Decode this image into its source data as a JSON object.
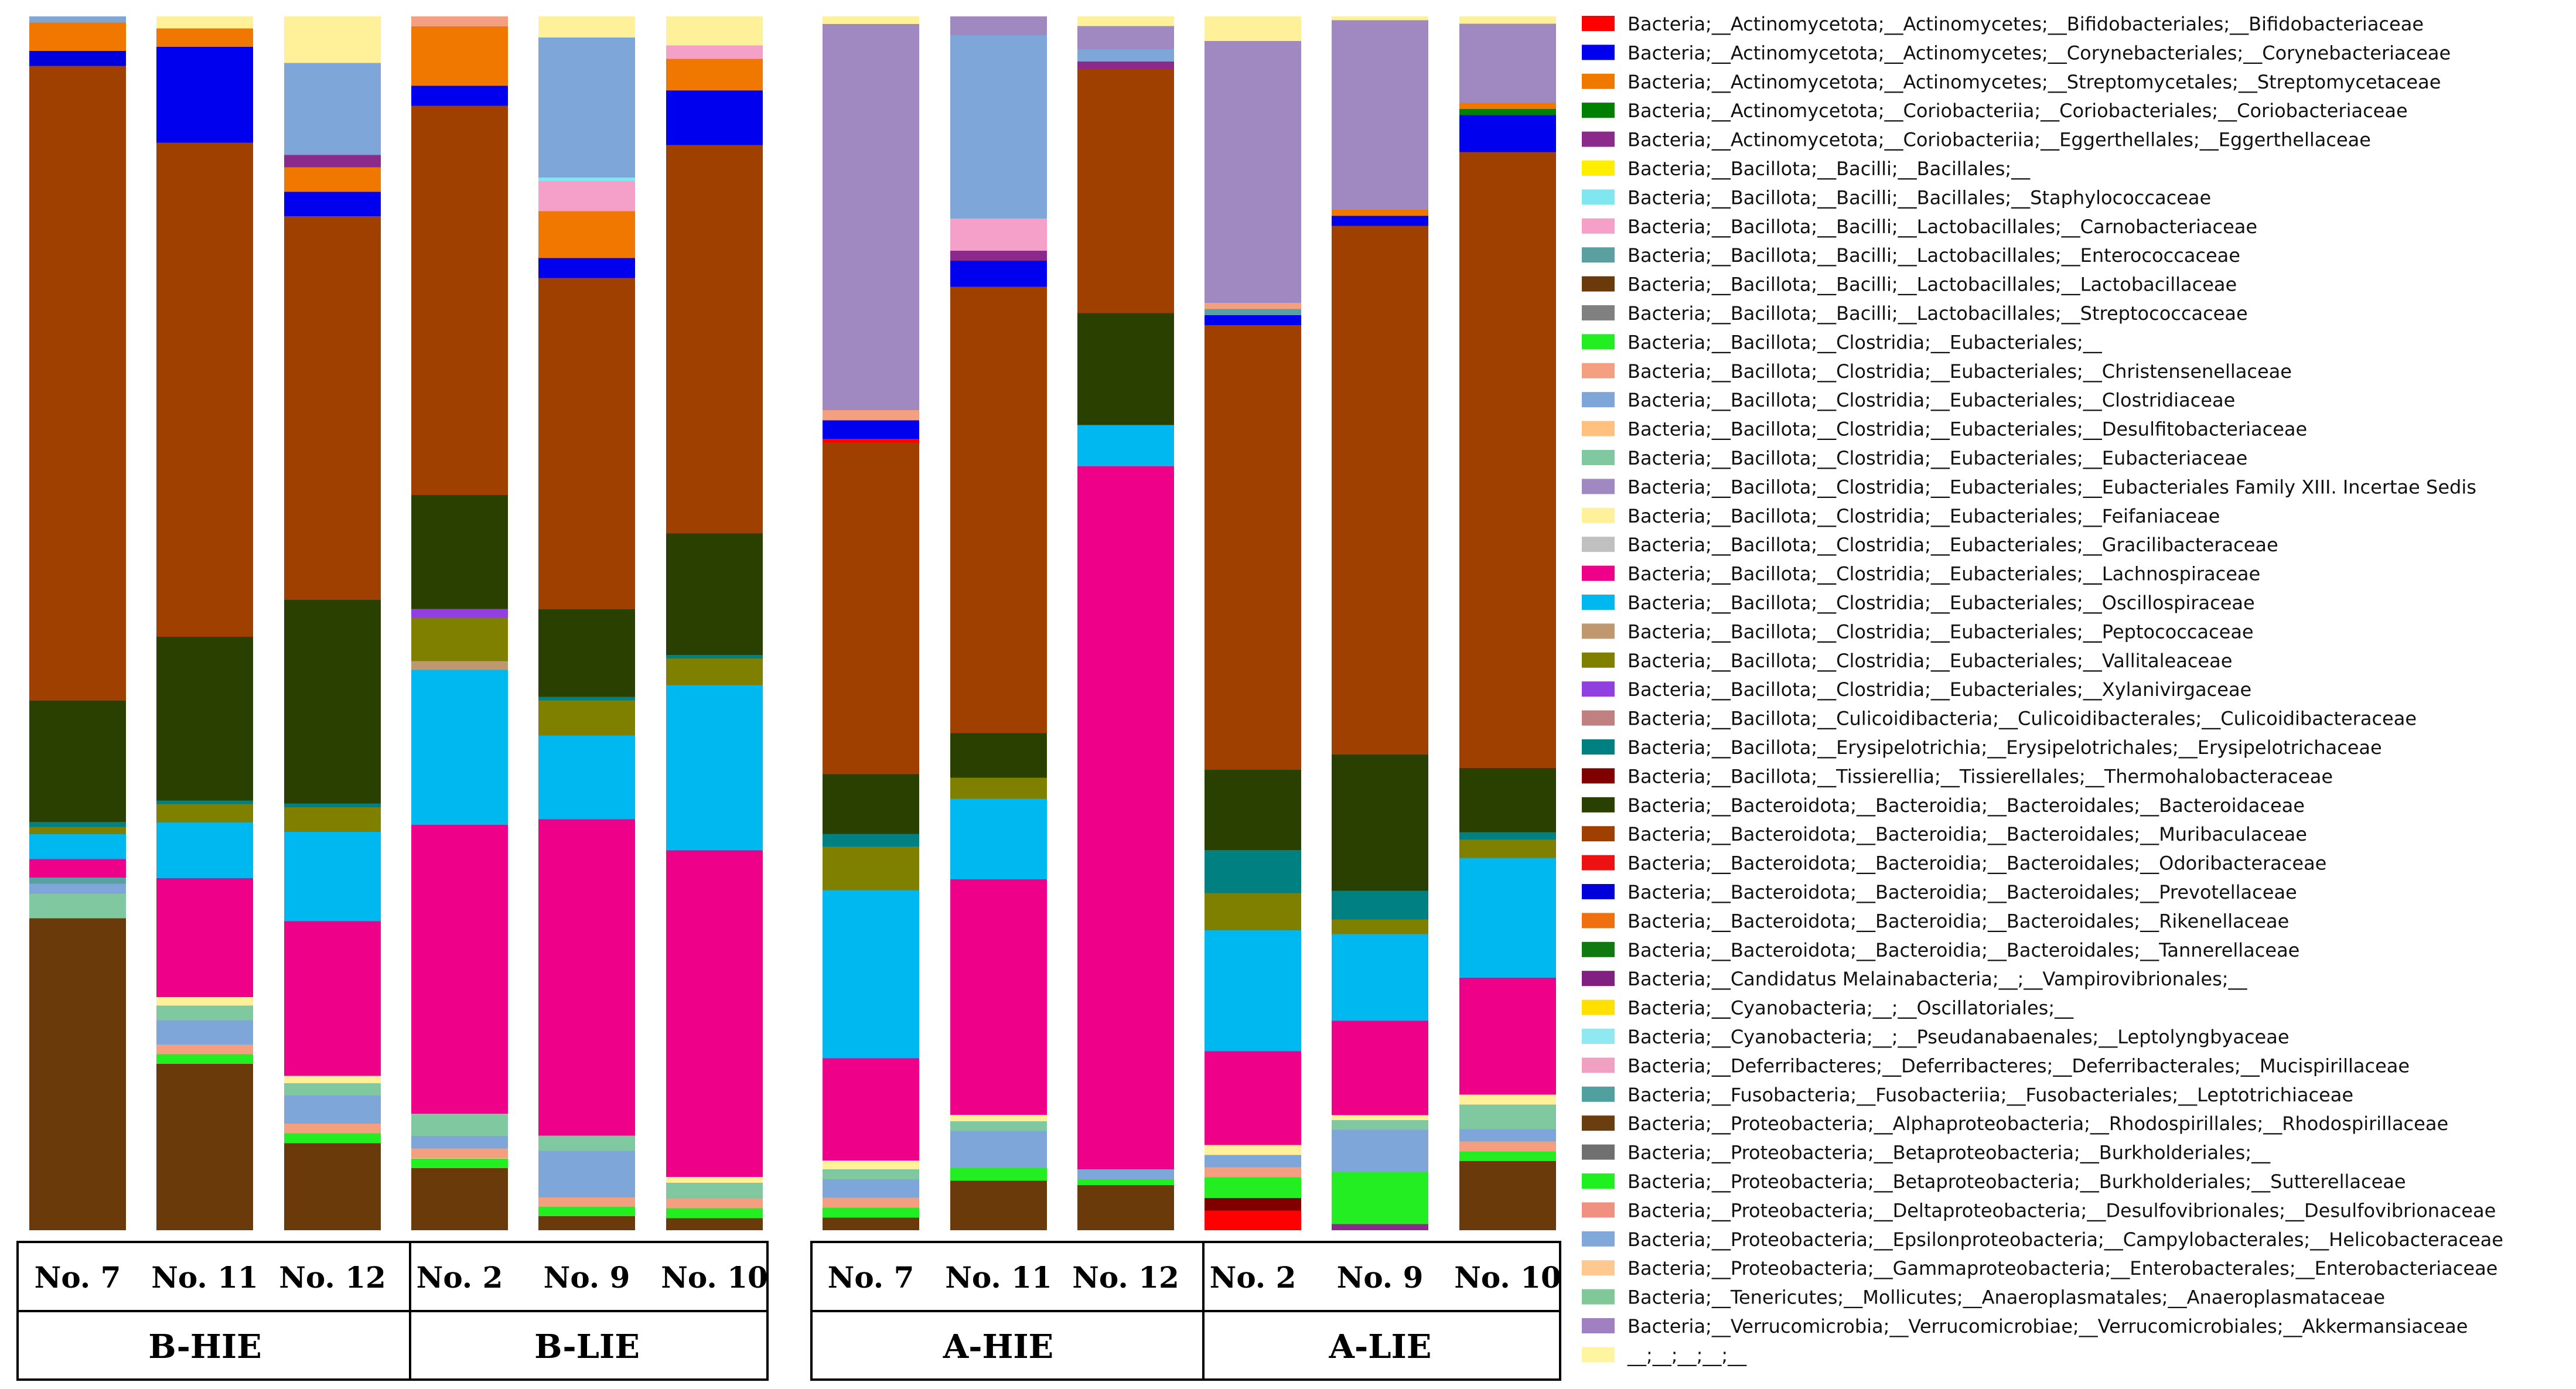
{
  "chart_data": {
    "type": "bar",
    "stacked": true,
    "normalized": true,
    "ylim": [
      0,
      100
    ],
    "legend_position": "right",
    "taxa": [
      {
        "name": "Bacteria;__Actinomycetota;__Actinomycetes;__Bifidobacteriales;__Bifidobacteriaceae",
        "color": "#ff0000"
      },
      {
        "name": "Bacteria;__Actinomycetota;__Actinomycetes;__Corynebacteriales;__Corynebacteriaceae",
        "color": "#0000ee"
      },
      {
        "name": "Bacteria;__Actinomycetota;__Actinomycetes;__Streptomycetales;__Streptomycetaceae",
        "color": "#f07800"
      },
      {
        "name": "Bacteria;__Actinomycetota;__Coriobacteriia;__Coriobacteriales;__Coriobacteriaceae",
        "color": "#008000"
      },
      {
        "name": "Bacteria;__Actinomycetota;__Coriobacteriia;__Eggerthellales;__Eggerthellaceae",
        "color": "#8b2a8b"
      },
      {
        "name": "Bacteria;__Bacillota;__Bacilli;__Bacillales;__",
        "color": "#ffee00"
      },
      {
        "name": "Bacteria;__Bacillota;__Bacilli;__Bacillales;__Staphylococcaceae",
        "color": "#80e6f0"
      },
      {
        "name": "Bacteria;__Bacillota;__Bacilli;__Lactobacillales;__Carnobacteriaceae",
        "color": "#f4a0c8"
      },
      {
        "name": "Bacteria;__Bacillota;__Bacilli;__Lactobacillales;__Enterococcaceae",
        "color": "#5aa0a0"
      },
      {
        "name": "Bacteria;__Bacillota;__Bacilli;__Lactobacillales;__Lactobacillaceae",
        "color": "#6b3a0a"
      },
      {
        "name": "Bacteria;__Bacillota;__Bacilli;__Lactobacillales;__Streptococcaceae",
        "color": "#808080"
      },
      {
        "name": "Bacteria;__Bacillota;__Clostridia;__Eubacteriales;__",
        "color": "#22ee22"
      },
      {
        "name": "Bacteria;__Bacillota;__Clostridia;__Eubacteriales;__Christensenellaceae",
        "color": "#f4a080"
      },
      {
        "name": "Bacteria;__Bacillota;__Clostridia;__Eubacteriales;__Clostridiaceae",
        "color": "#7ea6d8"
      },
      {
        "name": "Bacteria;__Bacillota;__Clostridia;__Eubacteriales;__Desulfitobacteriaceae",
        "color": "#ffc080"
      },
      {
        "name": "Bacteria;__Bacillota;__Clostridia;__Eubacteriales;__Eubacteriaceae",
        "color": "#80c8a0"
      },
      {
        "name": "Bacteria;__Bacillota;__Clostridia;__Eubacteriales;__Eubacteriales Family XIII. Incertae Sedis",
        "color": "#a088c0"
      },
      {
        "name": "Bacteria;__Bacillota;__Clostridia;__Eubacteriales;__Feifaniaceae",
        "color": "#fff09a"
      },
      {
        "name": "Bacteria;__Bacillota;__Clostridia;__Eubacteriales;__Gracilibacteraceae",
        "color": "#c0c0c0"
      },
      {
        "name": "Bacteria;__Bacillota;__Clostridia;__Eubacteriales;__Lachnospiraceae",
        "color": "#ee0088"
      },
      {
        "name": "Bacteria;__Bacillota;__Clostridia;__Eubacteriales;__Oscillospiraceae",
        "color": "#00b8f0"
      },
      {
        "name": "Bacteria;__Bacillota;__Clostridia;__Eubacteriales;__Peptococcaceae",
        "color": "#c09870"
      },
      {
        "name": "Bacteria;__Bacillota;__Clostridia;__Eubacteriales;__Vallitaleaceae",
        "color": "#808000"
      },
      {
        "name": "Bacteria;__Bacillota;__Clostridia;__Eubacteriales;__Xylanivirgaceae",
        "color": "#9040e0"
      },
      {
        "name": "Bacteria;__Bacillota;__Culicoidibacteria;__Culicoidibacterales;__Culicoidibacteraceae",
        "color": "#c08080"
      },
      {
        "name": "Bacteria;__Bacillota;__Erysipelotrichia;__Erysipelotrichales;__Erysipelotrichaceae",
        "color": "#008080"
      },
      {
        "name": "Bacteria;__Bacillota;__Tissierellia;__Tissierellales;__Thermohalobacteraceae",
        "color": "#800000"
      },
      {
        "name": "Bacteria;__Bacteroidota;__Bacteroidia;__Bacteroidales;__Bacteroidaceae",
        "color": "#2a4000"
      },
      {
        "name": "Bacteria;__Bacteroidota;__Bacteroidia;__Bacteroidales;__Muribaculaceae",
        "color": "#a04000"
      },
      {
        "name": "Bacteria;__Bacteroidota;__Bacteroidia;__Bacteroidales;__Odoribacteraceae",
        "color": "#ee1111"
      },
      {
        "name": "Bacteria;__Bacteroidota;__Bacteroidia;__Bacteroidales;__Prevotellaceae",
        "color": "#0000dd"
      },
      {
        "name": "Bacteria;__Bacteroidota;__Bacteroidia;__Bacteroidales;__Rikenellaceae",
        "color": "#f07010"
      },
      {
        "name": "Bacteria;__Bacteroidota;__Bacteroidia;__Bacteroidales;__Tannerellaceae",
        "color": "#107a10"
      },
      {
        "name": "Bacteria;__Candidatus Melainabacteria;__;__Vampirovibrionales;__",
        "color": "#802080"
      },
      {
        "name": "Bacteria;__Cyanobacteria;__;__Oscillatoriales;__",
        "color": "#ffe000"
      },
      {
        "name": "Bacteria;__Cyanobacteria;__;__Pseudanabaenales;__Leptolyngbyaceae",
        "color": "#90e8f0"
      },
      {
        "name": "Bacteria;__Deferribacteres;__Deferribacteres;__Deferribacterales;__Mucispirillaceae",
        "color": "#f0a0c0"
      },
      {
        "name": "Bacteria;__Fusobacteria;__Fusobacteriia;__Fusobacteriales;__Leptotrichiaceae",
        "color": "#50a0a0"
      },
      {
        "name": "Bacteria;__Proteobacteria;__Alphaproteobacteria;__Rhodospirillales;__Rhodospirillaceae",
        "color": "#6a3e0e"
      },
      {
        "name": "Bacteria;__Proteobacteria;__Betaproteobacteria;__Burkholderiales;__",
        "color": "#707070"
      },
      {
        "name": "Bacteria;__Proteobacteria;__Betaproteobacteria;__Burkholderiales;__Sutterellaceae",
        "color": "#20f020"
      },
      {
        "name": "Bacteria;__Proteobacteria;__Deltaproteobacteria;__Desulfovibrionales;__Desulfovibrionaceae",
        "color": "#f09080"
      },
      {
        "name": "Bacteria;__Proteobacteria;__Epsilonproteobacteria;__Campylobacterales;__Helicobacteraceae",
        "color": "#80a8d8"
      },
      {
        "name": "Bacteria;__Proteobacteria;__Gammaproteobacteria;__Enterobacterales;__Enterobacteriaceae",
        "color": "#ffc890"
      },
      {
        "name": "Bacteria;__Tenericutes;__Mollicutes;__Anaeroplasmatales;__Anaeroplasmataceae",
        "color": "#80c898"
      },
      {
        "name": "Bacteria;__Verrucomicrobia;__Verrucomicrobiae;__Verrucomicrobiales;__Akkermansiaceae",
        "color": "#a080c0"
      },
      {
        "name": "__;__;__;__;__",
        "color": "#fff5a0"
      }
    ],
    "groups": [
      {
        "name": "B-HIE",
        "samples": [
          "No. 7",
          "No. 11",
          "No. 12"
        ]
      },
      {
        "name": "B-LIE",
        "samples": [
          "No. 2",
          "No. 9",
          "No. 10"
        ]
      },
      {
        "name": "A-HIE",
        "samples": [
          "No. 7",
          "No. 11",
          "No. 12"
        ]
      },
      {
        "name": "A-LIE",
        "samples": [
          "No. 2",
          "No. 9",
          "No. 10"
        ]
      }
    ],
    "series_order": "bottom_to_top",
    "bars": [
      {
        "group": "B-HIE",
        "sample": "No. 7",
        "segments": [
          [
            9,
            25.2
          ],
          [
            15,
            2.0
          ],
          [
            13,
            0.8
          ],
          [
            8,
            0.5
          ],
          [
            19,
            1.5
          ],
          [
            20,
            2.0
          ],
          [
            22,
            0.6
          ],
          [
            25,
            0.4
          ],
          [
            27,
            9.8
          ],
          [
            28,
            51.3
          ],
          [
            30,
            1.2
          ],
          [
            2,
            2.3
          ],
          [
            13,
            0.5
          ]
        ]
      },
      {
        "group": "B-HIE",
        "sample": "No. 11",
        "segments": [
          [
            9,
            13.7
          ],
          [
            11,
            0.8
          ],
          [
            12,
            0.8
          ],
          [
            13,
            2.0
          ],
          [
            15,
            1.2
          ],
          [
            17,
            0.7
          ],
          [
            19,
            9.8
          ],
          [
            20,
            4.6
          ],
          [
            22,
            1.5
          ],
          [
            25,
            0.3
          ],
          [
            27,
            13.5
          ],
          [
            28,
            40.7
          ],
          [
            1,
            7.9
          ],
          [
            2,
            1.5
          ],
          [
            17,
            1.0
          ]
        ]
      },
      {
        "group": "B-HIE",
        "sample": "No. 12",
        "segments": [
          [
            9,
            7.1
          ],
          [
            11,
            0.8
          ],
          [
            12,
            0.8
          ],
          [
            13,
            2.3
          ],
          [
            15,
            1.0
          ],
          [
            17,
            0.6
          ],
          [
            19,
            12.6
          ],
          [
            20,
            7.3
          ],
          [
            22,
            2.0
          ],
          [
            25,
            0.3
          ],
          [
            27,
            16.6
          ],
          [
            28,
            31.3
          ],
          [
            1,
            2.0
          ],
          [
            2,
            2.0
          ],
          [
            4,
            1.0
          ],
          [
            13,
            7.5
          ],
          [
            17,
            3.8
          ]
        ]
      },
      {
        "group": "B-LIE",
        "sample": "No. 2",
        "segments": [
          [
            9,
            5.0
          ],
          [
            11,
            0.8
          ],
          [
            12,
            0.8
          ],
          [
            13,
            1.0
          ],
          [
            15,
            1.8
          ],
          [
            19,
            23.3
          ],
          [
            20,
            12.5
          ],
          [
            21,
            0.7
          ],
          [
            22,
            3.5
          ],
          [
            23,
            0.7
          ],
          [
            27,
            9.2
          ],
          [
            28,
            31.4
          ],
          [
            1,
            1.6
          ],
          [
            2,
            4.8
          ],
          [
            12,
            0.8
          ]
        ]
      },
      {
        "group": "B-LIE",
        "sample": "No. 9",
        "segments": [
          [
            9,
            1.2
          ],
          [
            11,
            0.8
          ],
          [
            12,
            0.8
          ],
          [
            13,
            4.0
          ],
          [
            15,
            1.3
          ],
          [
            19,
            27.1
          ],
          [
            20,
            7.2
          ],
          [
            22,
            3.0
          ],
          [
            25,
            0.3
          ],
          [
            27,
            7.5
          ],
          [
            28,
            28.4
          ],
          [
            1,
            1.7
          ],
          [
            2,
            4.0
          ],
          [
            7,
            2.6
          ],
          [
            6,
            0.3
          ],
          [
            13,
            12.0
          ],
          [
            17,
            1.8
          ]
        ]
      },
      {
        "group": "B-LIE",
        "sample": "No. 10",
        "segments": [
          [
            9,
            1.0
          ],
          [
            11,
            0.8
          ],
          [
            12,
            0.8
          ],
          [
            15,
            1.3
          ],
          [
            17,
            0.5
          ],
          [
            19,
            26.9
          ],
          [
            20,
            13.6
          ],
          [
            22,
            2.2
          ],
          [
            25,
            0.3
          ],
          [
            27,
            10.0
          ],
          [
            28,
            32.0
          ],
          [
            1,
            4.5
          ],
          [
            2,
            2.6
          ],
          [
            7,
            1.1
          ],
          [
            17,
            2.4
          ]
        ]
      },
      {
        "group": "A-HIE",
        "sample": "No. 7",
        "segments": [
          [
            9,
            1.0
          ],
          [
            11,
            0.8
          ],
          [
            12,
            0.8
          ],
          [
            13,
            1.5
          ],
          [
            15,
            0.8
          ],
          [
            17,
            0.7
          ],
          [
            19,
            8.2
          ],
          [
            20,
            13.5
          ],
          [
            22,
            3.5
          ],
          [
            25,
            1.0
          ],
          [
            27,
            4.8
          ],
          [
            28,
            26.6
          ],
          [
            0,
            0.3
          ],
          [
            1,
            1.5
          ],
          [
            12,
            0.8
          ],
          [
            16,
            31.0
          ],
          [
            17,
            0.6
          ]
        ]
      },
      {
        "group": "A-HIE",
        "sample": "No. 11",
        "segments": [
          [
            9,
            4.0
          ],
          [
            11,
            1.0
          ],
          [
            13,
            3.0
          ],
          [
            15,
            0.8
          ],
          [
            17,
            0.5
          ],
          [
            19,
            19.0
          ],
          [
            20,
            6.5
          ],
          [
            22,
            1.7
          ],
          [
            27,
            3.6
          ],
          [
            28,
            36.0
          ],
          [
            1,
            2.1
          ],
          [
            4,
            0.8
          ],
          [
            7,
            2.6
          ],
          [
            13,
            14.8
          ],
          [
            16,
            1.5
          ]
        ]
      },
      {
        "group": "A-HIE",
        "sample": "No. 12",
        "segments": [
          [
            9,
            3.7
          ],
          [
            11,
            0.5
          ],
          [
            13,
            0.8
          ],
          [
            19,
            57.8
          ],
          [
            20,
            3.4
          ],
          [
            27,
            9.2
          ],
          [
            28,
            20.1
          ],
          [
            4,
            0.6
          ],
          [
            13,
            1.0
          ],
          [
            16,
            1.9
          ],
          [
            17,
            0.8
          ]
        ]
      },
      {
        "group": "A-LIE",
        "sample": "No. 2",
        "segments": [
          [
            0,
            1.6
          ],
          [
            26,
            1.0
          ],
          [
            11,
            1.7
          ],
          [
            12,
            0.8
          ],
          [
            13,
            1.0
          ],
          [
            17,
            0.8
          ],
          [
            19,
            7.6
          ],
          [
            20,
            9.8
          ],
          [
            22,
            3.0
          ],
          [
            25,
            3.5
          ],
          [
            27,
            6.5
          ],
          [
            28,
            36.0
          ],
          [
            1,
            0.8
          ],
          [
            8,
            0.5
          ],
          [
            12,
            0.5
          ],
          [
            16,
            21.2
          ],
          [
            17,
            2.0
          ]
        ]
      },
      {
        "group": "A-LIE",
        "sample": "No. 9",
        "segments": [
          [
            4,
            0.5
          ],
          [
            11,
            4.2
          ],
          [
            13,
            3.4
          ],
          [
            15,
            0.8
          ],
          [
            17,
            0.4
          ],
          [
            19,
            7.6
          ],
          [
            20,
            7.0
          ],
          [
            22,
            1.2
          ],
          [
            25,
            2.3
          ],
          [
            27,
            11.0
          ],
          [
            28,
            42.7
          ],
          [
            1,
            0.8
          ],
          [
            2,
            0.5
          ],
          [
            16,
            15.3
          ],
          [
            17,
            0.3
          ]
        ]
      },
      {
        "group": "A-LIE",
        "sample": "No. 10",
        "segments": [
          [
            9,
            5.6
          ],
          [
            11,
            0.8
          ],
          [
            12,
            0.8
          ],
          [
            13,
            1.0
          ],
          [
            15,
            2.0
          ],
          [
            17,
            0.8
          ],
          [
            19,
            9.5
          ],
          [
            20,
            9.7
          ],
          [
            22,
            1.5
          ],
          [
            25,
            0.6
          ],
          [
            27,
            5.2
          ],
          [
            28,
            50.0
          ],
          [
            1,
            3.0
          ],
          [
            3,
            0.5
          ],
          [
            2,
            0.5
          ],
          [
            16,
            6.4
          ],
          [
            17,
            0.6
          ]
        ]
      }
    ]
  }
}
